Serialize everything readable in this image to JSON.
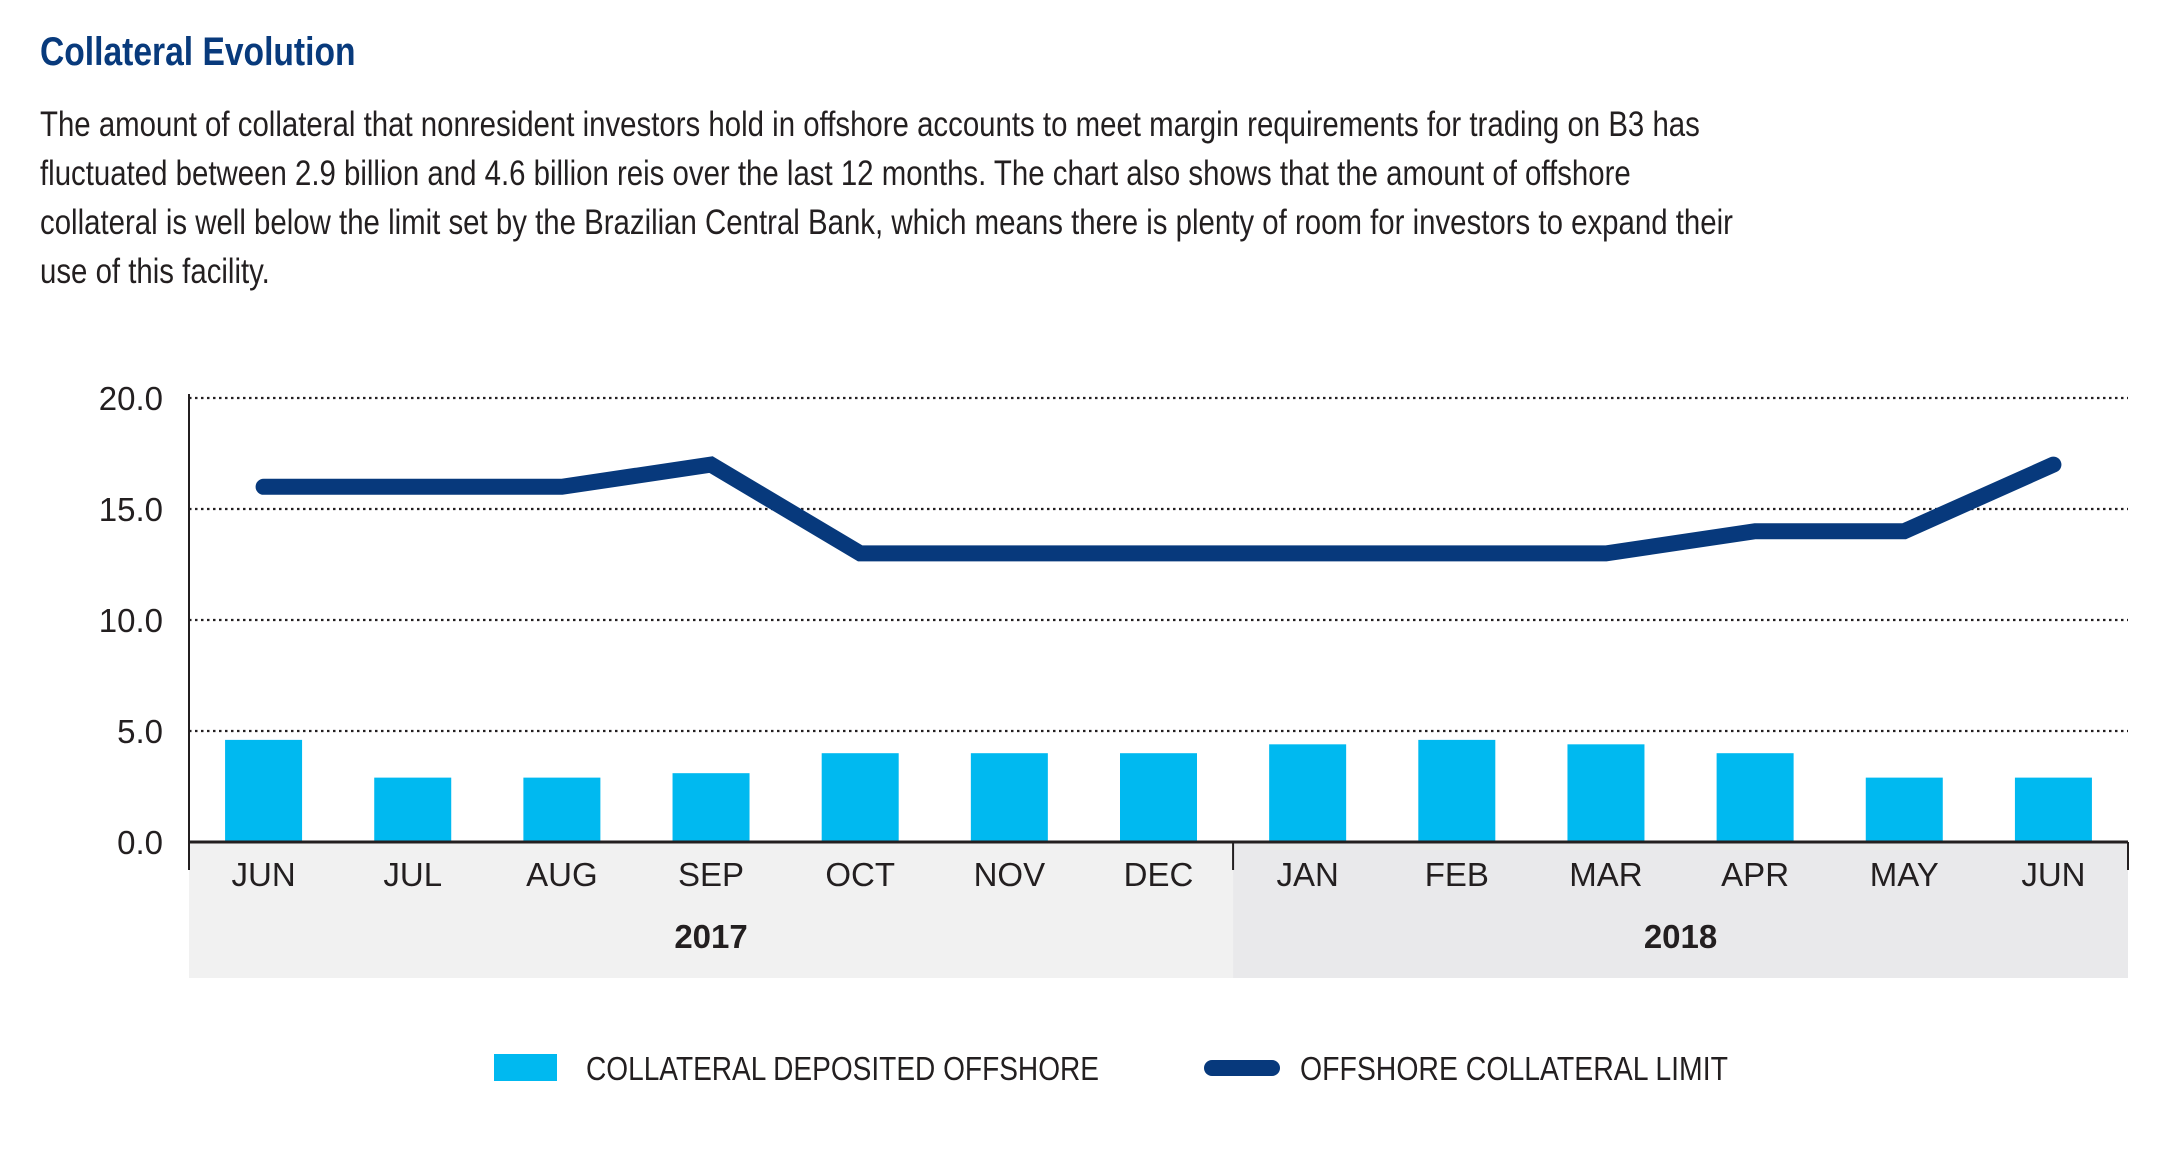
{
  "header": {
    "title": "Collateral Evolution",
    "description": "The amount of collateral that nonresident investors hold in offshore accounts to meet margin requirements for trading on B3 has fluctuated between 2.9 billion and 4.6 billion reis over the last 12 months. The chart also shows that the amount of offshore collateral is well below the limit set by the Brazilian Central Bank, which means there is plenty of room for investors to expand their use of this facility."
  },
  "chart_data": {
    "type": "bar",
    "categories": [
      "JUN",
      "JUL",
      "AUG",
      "SEP",
      "OCT",
      "NOV",
      "DEC",
      "JAN",
      "FEB",
      "MAR",
      "APR",
      "MAY",
      "JUN"
    ],
    "groups": [
      {
        "label": "2017",
        "span": 7
      },
      {
        "label": "2018",
        "span": 6
      }
    ],
    "series": [
      {
        "name": "COLLATERAL DEPOSITED OFFSHORE",
        "type": "bar",
        "color": "#00b9f0",
        "values": [
          4.6,
          2.9,
          2.9,
          3.1,
          4.0,
          4.0,
          4.0,
          4.4,
          4.6,
          4.4,
          4.0,
          2.9,
          2.9
        ]
      },
      {
        "name": "OFFSHORE COLLATERAL LIMIT",
        "type": "line",
        "color": "#07397c",
        "values": [
          16.0,
          16.0,
          16.0,
          17.0,
          13.0,
          13.0,
          13.0,
          13.0,
          13.0,
          13.0,
          14.0,
          14.0,
          17.0
        ]
      }
    ],
    "yticks": [
      "20.0",
      "15.0",
      "10.0",
      "5.0",
      "0.0"
    ],
    "ylim": [
      0,
      20
    ],
    "grid": true,
    "legend": "bottom",
    "xlabel": "",
    "ylabel": ""
  }
}
